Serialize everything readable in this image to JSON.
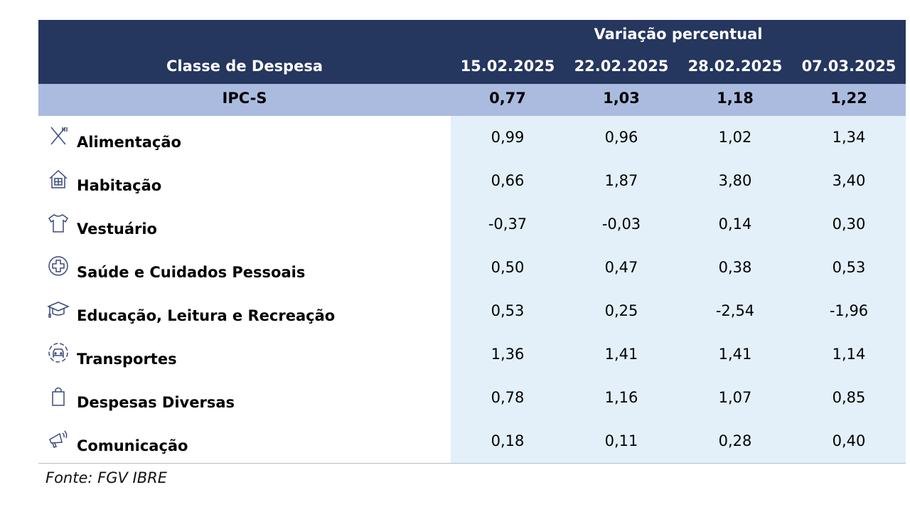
{
  "header": {
    "group": "Variação percentual",
    "class_label": "Classe de Despesa",
    "dates": [
      "15.02.2025",
      "22.02.2025",
      "28.02.2025",
      "07.03.2025"
    ]
  },
  "ipc": {
    "label": "IPC-S",
    "values": [
      "0,77",
      "1,03",
      "1,18",
      "1,22"
    ]
  },
  "rows": [
    {
      "label": "Alimentação",
      "icon": "fork-knife-icon",
      "values": [
        "0,99",
        "0,96",
        "1,02",
        "1,34"
      ]
    },
    {
      "label": "Habitação",
      "icon": "house-icon",
      "values": [
        "0,66",
        "1,87",
        "3,80",
        "3,40"
      ]
    },
    {
      "label": "Vestuário",
      "icon": "tshirt-icon",
      "values": [
        "-0,37",
        "-0,03",
        "0,14",
        "0,30"
      ]
    },
    {
      "label": "Saúde e Cuidados Pessoais",
      "icon": "health-cross-icon",
      "values": [
        "0,50",
        "0,47",
        "0,38",
        "0,53"
      ]
    },
    {
      "label": "Educação, Leitura e Recreação",
      "icon": "graduation-cap-icon",
      "values": [
        "0,53",
        "0,25",
        "-2,54",
        "-1,96"
      ]
    },
    {
      "label": "Transportes",
      "icon": "car-icon",
      "values": [
        "1,36",
        "1,41",
        "1,41",
        "1,14"
      ]
    },
    {
      "label": "Despesas Diversas",
      "icon": "shopping-bag-icon",
      "values": [
        "0,78",
        "1,16",
        "1,07",
        "0,85"
      ]
    },
    {
      "label": "Comunicação",
      "icon": "megaphone-icon",
      "values": [
        "0,18",
        "0,11",
        "0,28",
        "0,40"
      ]
    }
  ],
  "source": "Fonte: FGV IBRE"
}
